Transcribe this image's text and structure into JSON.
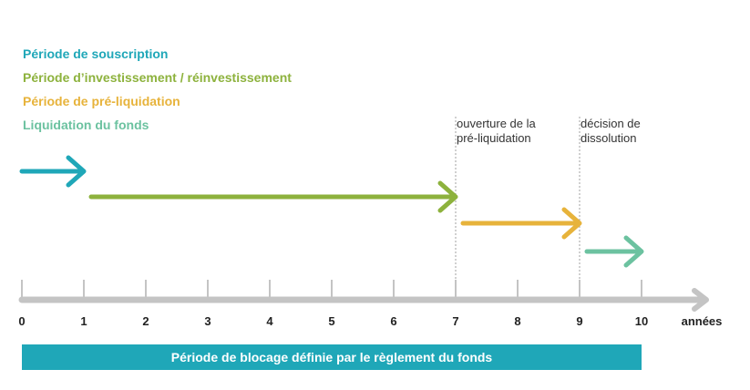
{
  "legend": [
    {
      "label": "Période de souscription",
      "color": "#1fa7b8"
    },
    {
      "label": "Période d’investissement / réinvestissement",
      "color": "#8db23d"
    },
    {
      "label": "Période de pré-liquidation",
      "color": "#e7b33b"
    },
    {
      "label": "Liquidation du fonds",
      "color": "#6cc2a0"
    }
  ],
  "phases": [
    {
      "start": 0,
      "end": 1,
      "color": "#1fa7b8"
    },
    {
      "start": 1,
      "end": 7,
      "color": "#8db23d"
    },
    {
      "start": 7,
      "end": 9,
      "color": "#e7b33b"
    },
    {
      "start": 9,
      "end": 10,
      "color": "#6cc2a0"
    }
  ],
  "annotations": [
    {
      "at": 7,
      "lines": [
        "ouverture de la",
        "pré-liquidation"
      ]
    },
    {
      "at": 9,
      "lines": [
        "décision de",
        "dissolution"
      ]
    }
  ],
  "axis": {
    "ticks": [
      0,
      1,
      2,
      3,
      4,
      5,
      6,
      7,
      8,
      9,
      10
    ],
    "tick_labels": [
      "0",
      "1",
      "2",
      "3",
      "4",
      "5",
      "6",
      "7",
      "8",
      "9",
      "10"
    ],
    "unit_label": "années",
    "color": "#c4c4c4"
  },
  "blocking_bar": {
    "label": "Période de blocage définie par le règlement du fonds",
    "color": "#1fa7b8"
  }
}
